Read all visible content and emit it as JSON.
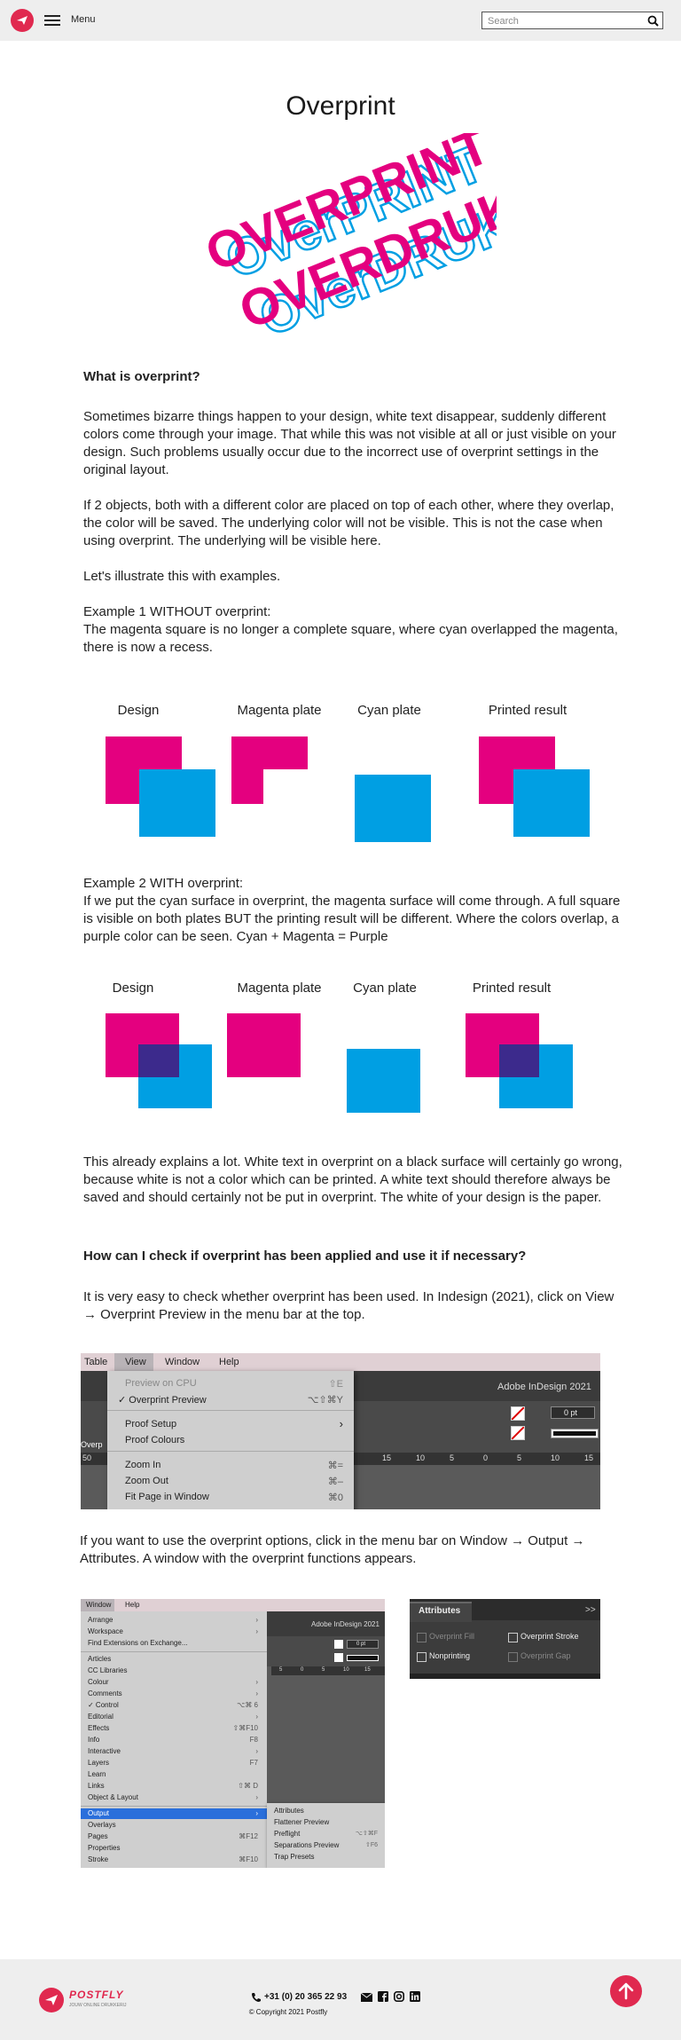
{
  "header": {
    "menu_label": "Menu",
    "search_placeholder": "Search"
  },
  "page": {
    "title": "Overprint",
    "hero": {
      "line1_solid": "OVERPRINT",
      "line1_outline": "OverPRINT",
      "line2_solid": "OVERDRUK",
      "line2_outline": "OverDRUK"
    },
    "q1": "What is overprint?",
    "p1": "Sometimes bizarre things happen to your design, white text disappear, suddenly different colors come through your image. That while this was not visible at all or just visible on your design. Such problems usually occur due to the incorrect use of overprint settings in the original layout.",
    "p2": "If 2 objects, both with a different color are placed on top of each other, where they overlap, the color will be saved. The underlying color will not be visible. This is not the case when using overprint. The underlying will be visible here.",
    "p3": "Let's illustrate this with examples.",
    "ex1_title": "Example 1 WITHOUT overprint:",
    "ex1_text": "The magenta square is no longer a complete square, where cyan overlapped the magenta, there is now a recess.",
    "ex1_labels": [
      "Design",
      "Magenta plate",
      "Cyan plate",
      "Printed result"
    ],
    "ex2_title": "Example 2 WITH overprint:",
    "ex2_text": "If we put the cyan surface in overprint, the magenta surface will come through. A full square is visible on both plates BUT the printing result will be different. Where the colors overlap, a purple color can be seen. Cyan + Magenta = Purple",
    "ex2_labels": [
      "Design",
      "Magenta plate",
      "Cyan plate",
      "Printed result"
    ],
    "p4": "This already explains a lot. White text in overprint on a black surface will certainly go wrong, because white is not a color which can be printed. A white text should therefore always be saved and should certainly not be put in overprint. The white of your design is the paper.",
    "q2": "How can I check if overprint has been applied and use it if necessary?",
    "p5": "It is very easy to check whether overprint has been used. In Indesign (2021), click on View → Overprint Preview in the menu bar at the top.",
    "p6": "If you want to use the overprint options, click in the menu bar on Window → Output → Attributes. A window with the overprint functions appears."
  },
  "view_menu": {
    "menubar": [
      "Table",
      "View",
      "Window",
      "Help"
    ],
    "app_title": "Adobe InDesign 2021",
    "items": [
      {
        "label": "Preview on CPU",
        "shortcut": "⇧E"
      },
      {
        "label": "✓ Overprint Preview",
        "shortcut": "⌥⇧⌘Y"
      },
      {
        "label": "Proof Setup",
        "shortcut": "›"
      },
      {
        "label": "Proof Colours",
        "shortcut": ""
      },
      {
        "label": "Zoom In",
        "shortcut": "⌘="
      },
      {
        "label": "Zoom Out",
        "shortcut": "⌘–"
      },
      {
        "label": "Fit Page in Window",
        "shortcut": "⌘0"
      }
    ],
    "stroke_value": "0 pt",
    "ruler": [
      "50",
      "15",
      "10",
      "5",
      "0",
      "5",
      "10",
      "15"
    ],
    "side_label": "Overp"
  },
  "window_menu": {
    "menubar": [
      "Window",
      "Help"
    ],
    "app_title": "Adobe InDesign 2021",
    "stroke_value": "0 pt",
    "ruler": [
      "5",
      "0",
      "5",
      "10",
      "15"
    ],
    "items": [
      {
        "label": "Arrange",
        "shortcut": "›"
      },
      {
        "label": "Workspace",
        "shortcut": "›"
      },
      {
        "label": "Find Extensions on Exchange...",
        "shortcut": ""
      },
      {
        "label": "Articles",
        "shortcut": ""
      },
      {
        "label": "CC Libraries",
        "shortcut": ""
      },
      {
        "label": "Colour",
        "shortcut": "›"
      },
      {
        "label": "Comments",
        "shortcut": "›"
      },
      {
        "label": "✓ Control",
        "shortcut": "⌥⌘ 6"
      },
      {
        "label": "Editorial",
        "shortcut": "›"
      },
      {
        "label": "Effects",
        "shortcut": "⇧⌘F10"
      },
      {
        "label": "Info",
        "shortcut": "F8"
      },
      {
        "label": "Interactive",
        "shortcut": "›"
      },
      {
        "label": "Layers",
        "shortcut": "F7"
      },
      {
        "label": "Learn",
        "shortcut": ""
      },
      {
        "label": "Links",
        "shortcut": "⇧⌘ D"
      },
      {
        "label": "Object & Layout",
        "shortcut": "›"
      },
      {
        "label": "Output",
        "shortcut": "›"
      },
      {
        "label": "Overlays",
        "shortcut": ""
      },
      {
        "label": "Pages",
        "shortcut": "⌘F12"
      },
      {
        "label": "Properties",
        "shortcut": ""
      },
      {
        "label": "Stroke",
        "shortcut": "⌘F10"
      }
    ],
    "submenu": [
      {
        "label": "Attributes",
        "shortcut": ""
      },
      {
        "label": "Flattener Preview",
        "shortcut": ""
      },
      {
        "label": "Preflight",
        "shortcut": "⌥⇧⌘F"
      },
      {
        "label": "Separations Preview",
        "shortcut": "⇧F6"
      },
      {
        "label": "Trap Presets",
        "shortcut": ""
      }
    ]
  },
  "attributes_panel": {
    "title": "Attributes",
    "overprint_fill": "Overprint Fill",
    "overprint_stroke": "Overprint Stroke",
    "nonprinting": "Nonprinting",
    "overprint_gap": "Overprint Gap"
  },
  "footer": {
    "brand": "POSTFLY",
    "tagline": "JOUW ONLINE DRUKKERIJ",
    "phone": "+31 (0) 20 365 22 93",
    "copyright": "© Copyright 2021 Postfly"
  },
  "colors": {
    "magenta": "#e4007f",
    "cyan": "#009fe3",
    "purple": "#3c2a8c",
    "brand_red": "#e0294f"
  }
}
